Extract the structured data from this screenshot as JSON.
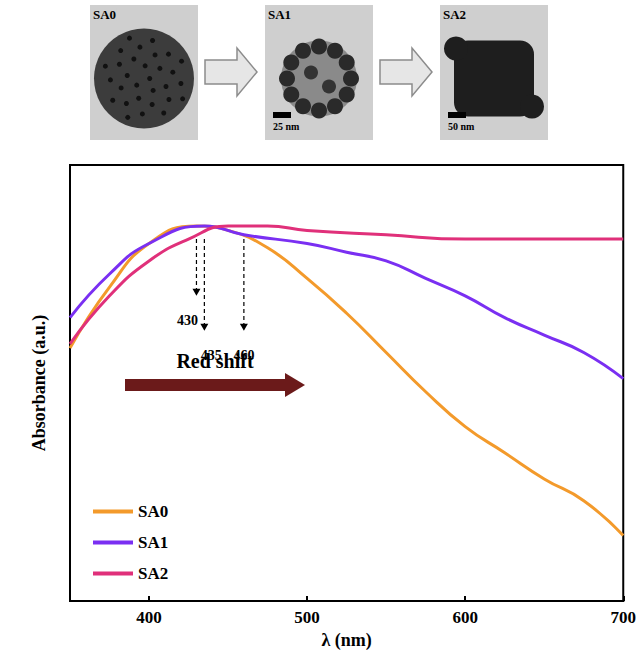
{
  "chart_data": {
    "type": "line",
    "images": [
      {
        "label": "SA0"
      },
      {
        "label": "SA1",
        "scale_bar": "25 nm"
      },
      {
        "label": "SA2",
        "scale_bar": "50 nm"
      }
    ],
    "x_label": "λ (nm)",
    "y_label": "Absorbance (a.u.)",
    "xlim": [
      350,
      700
    ],
    "xticks": [
      400,
      500,
      600,
      700
    ],
    "ylim": [
      0,
      1
    ],
    "tick_labels": "x",
    "grid": false,
    "legend": "bottom-left",
    "series": [
      {
        "name": "SA0",
        "color": "#f39a2b",
        "x": [
          350,
          375,
          400,
          430,
          450,
          475,
          500,
          525,
          550,
          575,
          600,
          625,
          650,
          675,
          700
        ],
        "values": [
          0.58,
          0.72,
          0.82,
          0.86,
          0.85,
          0.81,
          0.74,
          0.66,
          0.57,
          0.48,
          0.4,
          0.34,
          0.28,
          0.23,
          0.15
        ]
      },
      {
        "name": "SA1",
        "color": "#7a2ff2",
        "x": [
          350,
          375,
          400,
          435,
          460,
          500,
          525,
          550,
          575,
          600,
          625,
          650,
          675,
          700
        ],
        "values": [
          0.65,
          0.75,
          0.82,
          0.86,
          0.84,
          0.82,
          0.8,
          0.78,
          0.74,
          0.7,
          0.65,
          0.61,
          0.57,
          0.51
        ]
      },
      {
        "name": "SA2",
        "color": "#e0307a",
        "x": [
          350,
          375,
          400,
          425,
          450,
          475,
          500,
          550,
          600,
          650,
          700
        ],
        "values": [
          0.59,
          0.7,
          0.78,
          0.83,
          0.86,
          0.86,
          0.85,
          0.84,
          0.83,
          0.83,
          0.83
        ]
      }
    ],
    "annotations": [
      {
        "text": "430",
        "x": 430
      },
      {
        "text": "435",
        "x": 435
      },
      {
        "text": "460",
        "x": 460
      },
      {
        "text": "Red shift"
      }
    ]
  }
}
